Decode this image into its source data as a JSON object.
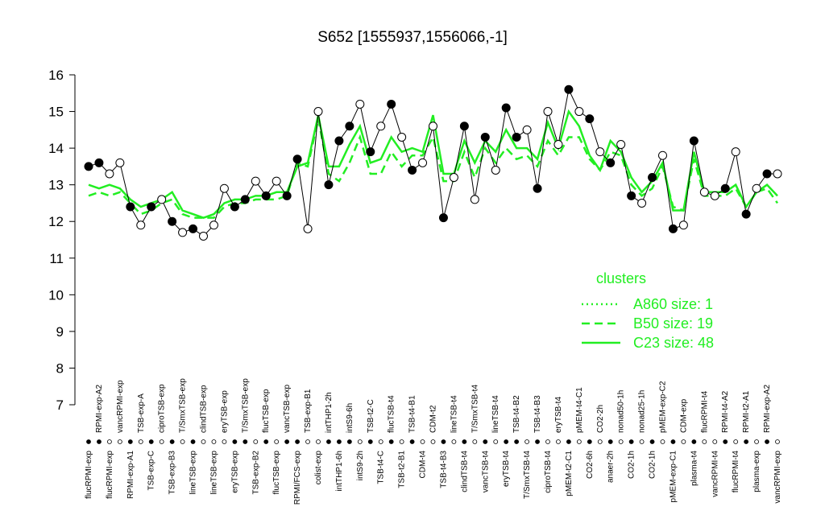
{
  "chart_data": {
    "type": "line",
    "title": "S652 [1555937,1556066,-1]",
    "categories": [
      "flucRPMI-exp",
      "RPMI-exp-A2",
      "flucRPMI-exp",
      "vancRPMI-exp",
      "RPMI-exp-A1",
      "TSB-exp-A",
      "TSB-exp-C",
      "ciproTSB-exp",
      "TSB-exp-B3",
      "T/SmxTSB-exp",
      "lineTSB-exp",
      "clindTSB-exp",
      "lineTSB-exp",
      "eryTSB-exp",
      "eryTSB-exp",
      "T/SmxTSB-exp",
      "TSB-exp-B2",
      "flucTSB-exp",
      "flucTSB-exp",
      "vancTSB-exp",
      "RPMI/FCS-exp",
      "TSB-exp-B1",
      "colist-exp",
      "intTHP1-2h",
      "intTHP1-6h",
      "intS9-6h",
      "intS9-2h",
      "TSB-t2-C",
      "TSB-t4-C",
      "flucTSB-t4",
      "TSB-t2-B1",
      "TSB-t4-B1",
      "CDM-t4",
      "CDM-t2",
      "TSB-t4-B3",
      "lineTSB-t4",
      "clindTSB-t4",
      "T/SmxTSB-t4",
      "vancTSB-t4",
      "lineTSB-t4",
      "eryTSB-t4",
      "TSB-t4-B2",
      "T/SmxTSB-t4",
      "TSB-t4-B3",
      "ciproTSB-t4",
      "eryTSB-t4",
      "pMEM-t2-C1",
      "pMEM-t4-C1",
      "CO2-6h",
      "CO2-2h",
      "anaer-2h",
      "nonad50-1h",
      "CO2-1h",
      "nonad25-1h",
      "CO2-1h",
      "pMEM-exp-C2",
      "pMEM-exp-C1",
      "CDM-exp",
      "plasma-t4",
      "flucRPMI-t4",
      "vancRPMI-t4",
      "RPMI-t4-A2",
      "flucRPMI-t4",
      "RPMI-t2-A1",
      "plasma-exp",
      "RPMI-exp-A2",
      "vancRPMI-exp"
    ],
    "values": [
      13.5,
      13.6,
      13.3,
      13.6,
      12.4,
      11.9,
      12.4,
      12.6,
      12.0,
      11.7,
      11.8,
      11.6,
      11.9,
      12.9,
      12.4,
      12.6,
      13.1,
      12.7,
      13.1,
      12.7,
      13.7,
      11.8,
      15.0,
      13.0,
      14.2,
      14.6,
      15.2,
      13.9,
      14.6,
      15.2,
      14.3,
      13.4,
      13.6,
      14.6,
      12.1,
      13.2,
      14.6,
      12.6,
      14.3,
      13.4,
      15.1,
      14.3,
      14.5,
      12.9,
      15.0,
      14.1,
      15.6,
      15.0,
      14.8,
      13.9,
      13.6,
      14.1,
      12.7,
      12.5,
      13.2,
      13.8,
      11.8,
      11.9,
      14.2,
      12.8,
      12.7,
      12.9,
      13.9,
      12.2,
      12.9,
      13.3,
      13.3
    ],
    "filled": [
      true,
      true,
      false,
      false,
      true,
      false,
      true,
      false,
      true,
      false,
      true,
      false,
      false,
      false,
      true,
      true,
      false,
      true,
      false,
      true,
      true,
      false,
      false,
      true,
      true,
      true,
      false,
      true,
      false,
      true,
      false,
      true,
      false,
      false,
      true,
      false,
      true,
      false,
      true,
      false,
      true,
      true,
      false,
      true,
      false,
      false,
      true,
      false,
      true,
      false,
      true,
      false,
      true,
      false,
      true,
      false,
      true,
      false,
      true,
      false,
      false,
      true,
      false,
      true,
      false,
      true,
      false
    ],
    "legend_title": "clusters",
    "series": [
      {
        "name": "A860 size: 1",
        "color": "#22ee22",
        "dash": "dotted"
      },
      {
        "name": "B50 size: 19",
        "color": "#22ee22",
        "dash": "dashed",
        "values": [
          12.7,
          12.8,
          12.7,
          12.8,
          12.5,
          12.2,
          12.3,
          12.5,
          12.6,
          12.2,
          12.1,
          12.1,
          12.1,
          12.4,
          12.5,
          12.5,
          12.6,
          12.6,
          12.6,
          12.7,
          13.6,
          13.5,
          14.8,
          13.3,
          13.1,
          13.6,
          14.3,
          13.3,
          13.3,
          13.9,
          13.5,
          13.8,
          13.8,
          14.3,
          13.1,
          13.1,
          13.9,
          13.2,
          14.0,
          13.6,
          14.0,
          13.7,
          13.8,
          13.5,
          14.2,
          13.8,
          14.3,
          14.3,
          13.7,
          13.4,
          13.9,
          13.8,
          13.0,
          12.7,
          12.9,
          13.5,
          12.4,
          12.3,
          13.7,
          12.7,
          12.7,
          12.7,
          12.9,
          12.4,
          12.8,
          12.9,
          12.5
        ]
      },
      {
        "name": "C23 size: 48",
        "color": "#22ee22",
        "dash": "solid",
        "values": [
          13.0,
          12.9,
          13.0,
          12.9,
          12.6,
          12.4,
          12.5,
          12.6,
          12.8,
          12.3,
          12.2,
          12.1,
          12.2,
          12.5,
          12.6,
          12.6,
          12.7,
          12.7,
          12.8,
          12.8,
          13.5,
          13.6,
          14.9,
          13.5,
          13.5,
          14.1,
          14.6,
          13.6,
          13.7,
          14.3,
          13.9,
          14.0,
          13.9,
          14.9,
          13.3,
          13.3,
          14.2,
          13.6,
          14.2,
          13.9,
          14.5,
          14.0,
          14.0,
          13.7,
          14.7,
          14.0,
          15.0,
          14.6,
          13.8,
          13.4,
          14.2,
          13.9,
          13.2,
          12.8,
          13.1,
          13.6,
          12.3,
          12.3,
          13.9,
          12.8,
          12.8,
          12.8,
          13.0,
          12.4,
          12.8,
          13.0,
          12.7
        ]
      }
    ],
    "ylim": [
      7,
      16
    ],
    "yticks": [
      7,
      8,
      9,
      10,
      11,
      12,
      13,
      14,
      15,
      16
    ]
  }
}
